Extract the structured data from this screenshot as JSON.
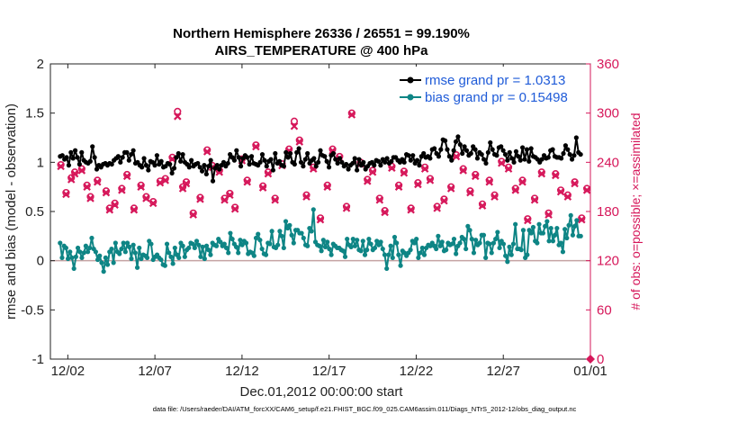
{
  "chart_data": {
    "type": "line",
    "title": "Northern Hemisphere 26336 / 26551 = 99.190%",
    "subtitle": "AIRS_TEMPERATURE @ 400 hPa",
    "xlabel": "Dec.01,2012 00:00:00 start",
    "ylabel": "rmse and bias (model - observation)",
    "y2label": "# of obs: o=possible; ×=assimilated",
    "footnote": "data file: /Users/raeder/DAI/ATM_forcXX/CAM6_setup/f.e21.FHIST_BGC.f09_025.CAM6assim.011/Diags_NTrS_2012-12/obs_diag_output.nc",
    "xlim": [
      0.5,
      31.5
    ],
    "ylim": [
      -1,
      2
    ],
    "y2lim": [
      0,
      360
    ],
    "x_ticks": [
      1.5,
      6.5,
      11.5,
      16.5,
      21.5,
      26.5,
      31.5
    ],
    "x_tick_labels": [
      "12/02",
      "12/07",
      "12/12",
      "12/17",
      "12/22",
      "12/27",
      "01/01"
    ],
    "y_ticks": [
      -1,
      -0.5,
      0,
      0.5,
      1,
      1.5,
      2
    ],
    "y_tick_labels": [
      "-1",
      "-0.5",
      "0",
      "0.5",
      "1",
      "1.5",
      "2"
    ],
    "y2_ticks": [
      0,
      60,
      120,
      180,
      240,
      300,
      360
    ],
    "y2_tick_labels": [
      "0",
      "60",
      "120",
      "180",
      "240",
      "300",
      "360"
    ],
    "colors": {
      "rmse": "#000000",
      "bias": "#0e8585",
      "obs": "#d6175a",
      "zero": "#c4a3a3"
    },
    "legend_location": "top-right",
    "series": [
      {
        "name": "rmse grand pr = 1.0313",
        "axis": "left",
        "values": [
          1.06,
          1.07,
          1.03,
          1.05,
          0.97,
          1.1,
          1.04,
          1.12,
          1.05,
          0.98,
          1.1,
          1.02,
          1.0,
          0.99,
          1.01,
          1.16,
          1.05,
          0.93,
          0.97,
          0.95,
          0.98,
          0.99,
          0.97,
          0.99,
          0.98,
          1.02,
          1.04,
          1.06,
          1.0,
          1.05,
          1.1,
          1.1,
          1.02,
          1.08,
          1.12,
          0.99,
          1.0,
          0.97,
          0.95,
          1.04,
          0.97,
          0.92,
          1.01,
          1.0,
          0.97,
          1.07,
          0.98,
          1.01,
          0.95,
          0.96,
          0.99,
          0.98,
          0.89,
          0.94,
          1.05,
          1.09,
          1.01,
          1.08,
          1.0,
          0.98,
          0.95,
          1.02,
          0.96,
          0.98,
          0.99,
          0.95,
          0.91,
          0.97,
          0.88,
          0.96,
          1.02,
          0.81,
          0.94,
          0.97,
          0.93,
          0.97,
          1.0,
          0.96,
          0.99,
          1.08,
          1.05,
          1.02,
          1.12,
          1.05,
          0.96,
          1.04,
          1.07,
          1.05,
          0.98,
          1.06,
          0.99,
          0.98,
          0.97,
          1.0,
          1.08,
          1.02,
          0.96,
          1.01,
          1.03,
          0.92,
          1.09,
          0.99,
          1.01,
          0.97,
          0.96,
          1.1,
          1.05,
          1.09,
          1.0,
          0.98,
          1.1,
          1.14,
          1.0,
          0.96,
          1.03,
          1.09,
          0.99,
          1.02,
          1.04,
          0.96,
          1.0,
          1.12,
          1.07,
          1.06,
          1.01,
          0.95,
          1.07,
          1.09,
          1.03,
          0.99,
          1.04,
          1.0,
          0.96,
          0.98,
          0.93,
          0.97,
          0.99,
          1.04,
          0.92,
          1.03,
          0.97,
          1.0,
          0.93,
          0.96,
          0.99,
          1.0,
          0.97,
          1.02,
          1.01,
          0.97,
          1.03,
          1.0,
          1.04,
          0.99,
          1.01,
          1.05,
          1.05,
          1.02,
          1.0,
          1.03,
          1.0,
          1.08,
          1.07,
          1.02,
          1.07,
          0.99,
          1.02,
          0.97,
          1.06,
          1.09,
          1.05,
          1.06,
          1.04,
          1.13,
          1.14,
          1.09,
          1.06,
          1.13,
          1.23,
          1.22,
          1.13,
          1.06,
          1.02,
          1.12,
          1.21,
          1.26,
          1.18,
          1.09,
          1.16,
          1.12,
          1.07,
          1.09,
          1.16,
          1.13,
          1.04,
          1.1,
          1.08,
          1.03,
          0.99,
          1.1,
          1.2,
          1.13,
          1.08,
          1.07,
          1.15,
          1.16,
          1.12,
          1.08,
          1.02,
          1.1,
          1.04,
          1.0,
          1.11,
          1.06,
          1.02,
          1.15,
          1.03,
          1.13,
          1.01,
          1.14,
          1.06,
          1.05,
          1.03,
          1.0,
          1.03,
          1.07,
          1.04,
          1.05,
          1.12,
          1.13,
          1.06,
          1.05,
          1.05,
          1.04,
          1.09,
          1.17,
          1.13,
          1.08,
          1.03,
          1.07,
          1.25,
          1.1,
          1.08
        ]
      },
      {
        "name": "bias grand pr = 0.15498",
        "axis": "left",
        "values": [
          0.18,
          0.03,
          0.15,
          0.13,
          0.02,
          0.09,
          0.03,
          -0.08,
          0.04,
          0.13,
          0.09,
          0.03,
          0.08,
          0.15,
          0.09,
          0.13,
          0.23,
          0.12,
          0.09,
          0.01,
          0.05,
          -0.02,
          -0.11,
          0.03,
          -0.04,
          0.09,
          0.12,
          -0.02,
          0.18,
          0.09,
          0.07,
          0.12,
          0.18,
          0.09,
          0.18,
          0.14,
          0.02,
          0.16,
          0.08,
          -0.07,
          0.13,
          0.02,
          0.06,
          0.05,
          0.03,
          0.2,
          0.17,
          0.01,
          0.04,
          0.06,
          0.03,
          0.01,
          -0.04,
          -0.05,
          0.17,
          0.08,
          0.04,
          -0.03,
          0.13,
          0.06,
          0.03,
          0.18,
          0.15,
          0.04,
          0.11,
          0.13,
          0.18,
          0.17,
          0.13,
          0.2,
          0.16,
          0.04,
          0.14,
          0.02,
          0.15,
          0.11,
          0.06,
          0.18,
          0.16,
          0.15,
          0.22,
          0.19,
          0.15,
          0.17,
          0.13,
          0.08,
          0.28,
          0.22,
          0.17,
          0.14,
          0.08,
          0.21,
          0.16,
          0.2,
          0.18,
          0.07,
          0.09,
          0.08,
          0.05,
          0.23,
          0.27,
          0.21,
          0.12,
          0.07,
          0.06,
          0.18,
          0.17,
          0.3,
          0.14,
          0.13,
          0.16,
          0.3,
          0.25,
          0.13,
          0.4,
          0.33,
          0.36,
          0.26,
          0.18,
          0.31,
          0.31,
          0.28,
          0.28,
          0.23,
          0.16,
          0.15,
          0.33,
          0.3,
          0.52,
          0.19,
          0.16,
          0.15,
          0.1,
          0.21,
          0.14,
          0.19,
          0.12,
          0.06,
          0.17,
          0.15,
          0.13,
          0.13,
          0.11,
          0.1,
          0.04,
          0.22,
          0.16,
          0.14,
          0.22,
          0.15,
          0.21,
          0.11,
          0.1,
          0.2,
          0.06,
          0.11,
          0.22,
          0.17,
          0.11,
          0.13,
          0.2,
          0.16,
          0.19,
          0.12,
          0.06,
          -0.08,
          0.06,
          0.15,
          0.03,
          0.24,
          0.18,
          0.06,
          -0.05,
          0.1,
          0.08,
          0.05,
          0.08,
          0.11,
          0.2,
          0.18,
          0.22,
          0.03,
          0.08,
          0.13,
          0.06,
          0.13,
          0.16,
          0.15,
          0.18,
          0.15,
          0.12,
          0.25,
          0.15,
          0.19,
          0.1,
          0.11,
          0.18,
          0.16,
          0.17,
          0.22,
          0.07,
          0.15,
          0.18,
          0.24,
          0.22,
          0.12,
          0.35,
          0.31,
          0.22,
          0.08,
          0.21,
          0.16,
          0.18,
          0.26,
          0.26,
          0.03,
          0.18,
          0.17,
          0.08,
          0.18,
          0.22,
          0.29,
          0.13,
          0.2,
          0.17,
          0.05,
          -0.01,
          0.14,
          0.06,
          0.17,
          0.37,
          0.12,
          0.12,
          0.11,
          0.31,
          0.03,
          0.06,
          0.31,
          0.28,
          0.34,
          0.2,
          0.18,
          0.37,
          0.28,
          0.28,
          0.35,
          0.4,
          0.2,
          0.33,
          0.2,
          0.26,
          0.33,
          0.16,
          0.18,
          0.09,
          0.32,
          0.23,
          0.36,
          0.46,
          0.26,
          0.35,
          0.41,
          0.25,
          0.25
        ]
      },
      {
        "name": "# of obs (possible)",
        "axis": "right",
        "marker": "circle",
        "x": [
          1.1,
          1.4,
          1.7,
          1.9,
          2.3,
          2.6,
          2.8,
          3.2,
          3.7,
          3.9,
          4.2,
          4.6,
          4.9,
          5.3,
          5.7,
          6.0,
          6.4,
          6.8,
          7.1,
          7.5,
          7.8,
          8.1,
          8.3,
          8.7,
          9.1,
          9.5,
          9.8,
          10.2,
          10.5,
          10.8,
          11.1,
          11.5,
          11.8,
          12.3,
          12.7,
          13.0,
          13.4,
          13.8,
          14.2,
          14.5,
          14.8,
          15.2,
          15.6,
          16.0,
          16.4,
          16.7,
          17.1,
          17.5,
          17.8,
          18.3,
          18.7,
          19.0,
          19.4,
          19.7,
          20.1,
          20.5,
          20.8,
          21.2,
          21.6,
          22.0,
          22.3,
          22.7,
          23.1,
          23.5,
          23.8,
          24.2,
          24.6,
          24.9,
          25.3,
          25.7,
          26.0,
          26.4,
          26.8,
          27.2,
          27.6,
          27.9,
          28.3,
          28.7,
          29.1,
          29.5,
          29.8,
          30.2,
          30.6,
          31.0,
          31.3
        ],
        "values": [
          237,
          203,
          221,
          228,
          232,
          212,
          198,
          218,
          205,
          184,
          190,
          208,
          225,
          184,
          212,
          198,
          192,
          217,
          220,
          246,
          302,
          210,
          216,
          178,
          197,
          255,
          236,
          230,
          196,
          202,
          185,
          244,
          218,
          261,
          211,
          228,
          196,
          238,
          256,
          290,
          267,
          200,
          234,
          172,
          212,
          256,
          247,
          186,
          300,
          240,
          219,
          230,
          196,
          181,
          235,
          212,
          229,
          184,
          215,
          234,
          220,
          186,
          195,
          210,
          249,
          232,
          205,
          225,
          189,
          218,
          200,
          241,
          234,
          208,
          218,
          171,
          196,
          228,
          178,
          226,
          206,
          200,
          216,
          172,
          208
        ]
      },
      {
        "name": "# of obs (assimilated)",
        "axis": "right",
        "marker": "x",
        "x": [
          1.1,
          1.4,
          1.7,
          1.9,
          2.3,
          2.6,
          2.8,
          3.2,
          3.7,
          3.9,
          4.2,
          4.6,
          4.9,
          5.3,
          5.7,
          6.0,
          6.4,
          6.8,
          7.1,
          7.5,
          7.8,
          8.1,
          8.3,
          8.7,
          9.1,
          9.5,
          9.8,
          10.2,
          10.5,
          10.8,
          11.1,
          11.5,
          11.8,
          12.3,
          12.7,
          13.0,
          13.4,
          13.8,
          14.2,
          14.5,
          14.8,
          15.2,
          15.6,
          16.0,
          16.4,
          16.7,
          17.1,
          17.5,
          17.8,
          18.3,
          18.7,
          19.0,
          19.4,
          19.7,
          20.1,
          20.5,
          20.8,
          21.2,
          21.6,
          22.0,
          22.3,
          22.7,
          23.1,
          23.5,
          23.8,
          24.2,
          24.6,
          24.9,
          25.3,
          25.7,
          26.0,
          26.4,
          26.8,
          27.2,
          27.6,
          27.9,
          28.3,
          28.7,
          29.1,
          29.5,
          29.8,
          30.2,
          30.6,
          31.0,
          31.3
        ],
        "values": [
          235,
          201,
          219,
          226,
          230,
          210,
          196,
          216,
          203,
          182,
          188,
          206,
          223,
          182,
          210,
          196,
          190,
          215,
          218,
          244,
          296,
          208,
          214,
          176,
          195,
          253,
          234,
          228,
          194,
          200,
          183,
          242,
          216,
          259,
          209,
          226,
          194,
          236,
          254,
          284,
          265,
          198,
          232,
          170,
          210,
          254,
          245,
          184,
          298,
          238,
          217,
          228,
          194,
          179,
          233,
          210,
          227,
          182,
          213,
          232,
          218,
          184,
          193,
          208,
          247,
          230,
          203,
          223,
          187,
          216,
          198,
          239,
          232,
          206,
          216,
          169,
          194,
          226,
          176,
          224,
          204,
          198,
          214,
          170,
          206
        ]
      }
    ]
  }
}
